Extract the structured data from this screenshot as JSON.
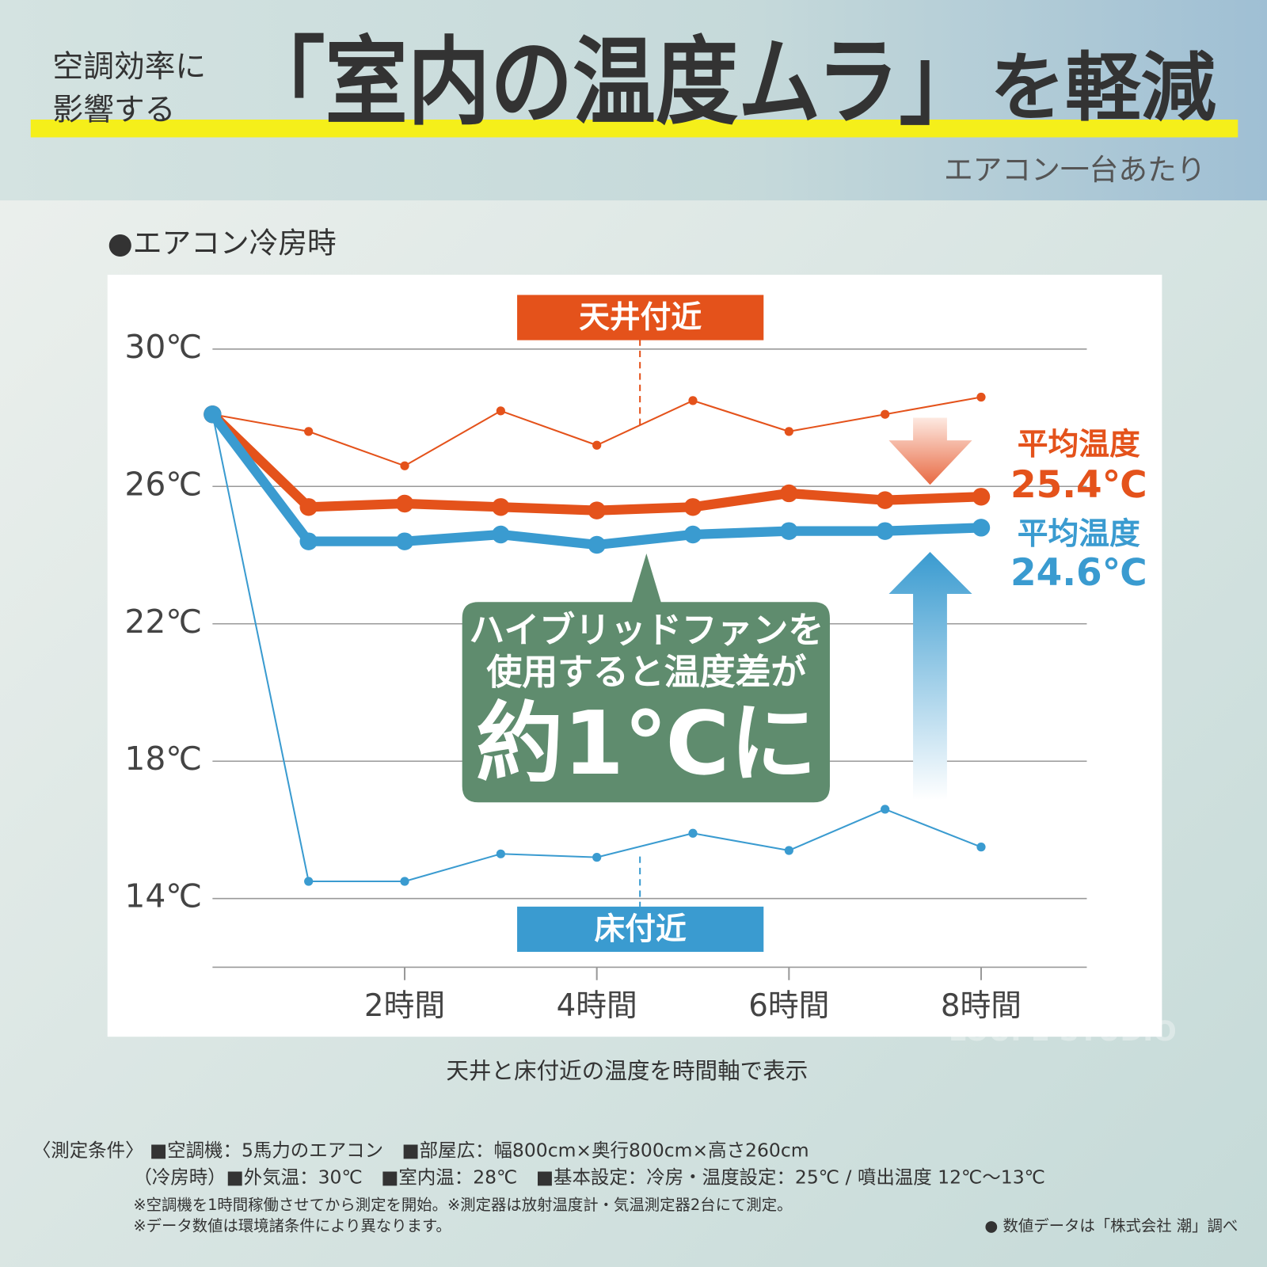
{
  "header": {
    "lead": [
      "空調効率に",
      "影響する"
    ],
    "title": "「室内の温度ムラ」",
    "title_tail": "を軽減",
    "subtitle": "エアコン一台あたり"
  },
  "chart_data": {
    "type": "line",
    "title": "●エアコン冷房時",
    "x": [
      0,
      1,
      2,
      3,
      4,
      5,
      6,
      7,
      8
    ],
    "xlim": [
      0,
      9.1
    ],
    "xticks": [
      {
        "value": 2,
        "label": "2時間"
      },
      {
        "value": 4,
        "label": "4時間"
      },
      {
        "value": 6,
        "label": "6時間"
      },
      {
        "value": 8,
        "label": "8時間"
      }
    ],
    "ylim": [
      12,
      30
    ],
    "yticks": [
      {
        "value": 14,
        "label": "14℃"
      },
      {
        "value": 18,
        "label": "18℃"
      },
      {
        "value": 22,
        "label": "22℃"
      },
      {
        "value": 26,
        "label": "26℃"
      },
      {
        "value": 30,
        "label": "30℃"
      }
    ],
    "grid": true,
    "series": [
      {
        "name": "天井付近",
        "color": "#e4521b",
        "values": [
          28.1,
          27.6,
          26.6,
          28.2,
          27.2,
          28.5,
          27.6,
          28.1,
          28.6
        ]
      },
      {
        "name": "平均温度",
        "color": "#e4521b",
        "values": [
          28.1,
          25.4,
          25.5,
          25.4,
          25.3,
          25.4,
          25.8,
          25.6,
          25.7
        ]
      },
      {
        "name": "平均温度",
        "color": "#3a9bd0",
        "values": [
          28.1,
          24.4,
          24.4,
          24.6,
          24.3,
          24.6,
          24.7,
          24.7,
          24.8
        ]
      },
      {
        "name": "床付近",
        "color": "#3a9bd0",
        "values": [
          28.1,
          14.5,
          14.5,
          15.3,
          15.2,
          15.9,
          15.4,
          16.6,
          15.5
        ]
      }
    ],
    "annotations": [
      "25.4℃",
      "24.6℃"
    ],
    "callout": [
      "ハイブリッドファンを",
      "使用すると温度差が",
      "約1℃に"
    ],
    "caption": "天井と床付近の温度を時間軸で表示"
  },
  "footer": {
    "conditions": [
      "〈測定条件〉 ■空調機：5馬力のエアコン　■部屋広：幅800cm×奥行800cm×高さ260cm",
      "（冷房時）■外気温：30℃　■室内温：28℃　■基本設定：冷房・温度設定：25℃ / 噴出温度 12℃〜13℃"
    ],
    "notes": [
      "※空調機を1時間稼働させてから測定を開始。※測定器は放射温度計・気温測定器2台にて測定。",
      "※データ数値は環境諸条件により異なります。"
    ],
    "source": "● 数値データは「株式会社 潮」調べ",
    "watermark": "LOUPE STUDIO"
  }
}
